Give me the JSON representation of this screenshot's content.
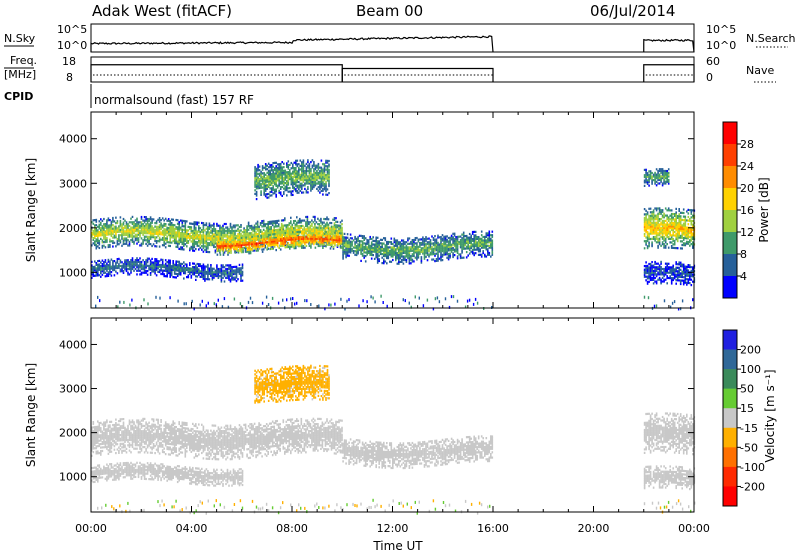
{
  "header": {
    "station": "Adak West (fitACF)",
    "beam": "Beam 00",
    "date": "06/Jul/2014"
  },
  "top_panels": {
    "nsky_label": "N.Sky",
    "nsky_ticks": [
      "10^5",
      "10^0"
    ],
    "nsearch_label": "N.Search",
    "nsearch_ticks": [
      "10^5",
      "10^0"
    ],
    "freq_label": "Freq.",
    "freq_unit": "[MHz]",
    "freq_ticks": [
      "18",
      "8"
    ],
    "nave_label": "Nave",
    "nave_ticks": [
      "60",
      "0"
    ],
    "cpid_label": "CPID",
    "cpid_text": "normalsound (fast) 157 RF",
    "freq_segments": [
      {
        "start": 0,
        "end": 10,
        "freq_level": 0.45
      },
      {
        "start": 10,
        "end": 16,
        "freq_level": 0.3
      },
      {
        "start": 22,
        "end": 24,
        "freq_level": 0.45
      }
    ],
    "nave_level": 0.12,
    "noise_level": 0.3,
    "data_windows": [
      [
        0,
        16
      ],
      [
        22,
        24
      ]
    ]
  },
  "colorbars": {
    "power_label": "Power [dB]",
    "power_ticks": [
      "28",
      "24",
      "20",
      "16",
      "12",
      "8",
      "4"
    ],
    "power_colors": [
      "#ff0000",
      "#ff4000",
      "#ff8c00",
      "#ffd200",
      "#a0d040",
      "#3f9a6a",
      "#26609a",
      "#0000ff"
    ],
    "velocity_label": "Velocity [m s⁻¹]",
    "velocity_ticks": [
      "200",
      "100",
      "50",
      "15",
      "-15",
      "-50",
      "-100",
      "-200"
    ],
    "velocity_colors": [
      "#2020e0",
      "#306898",
      "#3a8a5a",
      "#66cc33",
      "#c8c8c8",
      "#ffb000",
      "#ff7000",
      "#ff2a00",
      "#ff0000"
    ]
  },
  "chart_data": [
    {
      "type": "heatmap",
      "panel": "power",
      "ylabel": "Slant Range [km]",
      "xlabel": "Time UT",
      "xlim": [
        0,
        24
      ],
      "ylim": [
        200,
        4600
      ],
      "y_ticks": [
        1000,
        2000,
        3000,
        4000
      ],
      "x_ticks": [
        "00:00",
        "04:00",
        "08:00",
        "12:00",
        "16:00",
        "20:00",
        "00:00"
      ],
      "data_windows": [
        [
          0,
          16
        ],
        [
          22,
          24
        ]
      ],
      "bands": [
        {
          "t0": 0,
          "t1": 10,
          "r0": 1550,
          "r1": 2200,
          "value": 14
        },
        {
          "t0": 5,
          "t1": 10,
          "r0": 1500,
          "r1": 1900,
          "value": 22
        },
        {
          "t0": 10,
          "t1": 16,
          "r0": 1300,
          "r1": 1900,
          "value": 10
        },
        {
          "t0": 0,
          "t1": 6,
          "r0": 900,
          "r1": 1300,
          "value": 6
        },
        {
          "t0": 6.5,
          "t1": 9.5,
          "r0": 2700,
          "r1": 3500,
          "value": 11
        },
        {
          "t0": 22,
          "t1": 24,
          "r0": 1500,
          "r1": 2400,
          "value": 17
        },
        {
          "t0": 22,
          "t1": 24,
          "r0": 700,
          "r1": 1200,
          "value": 5
        },
        {
          "t0": 22,
          "t1": 23,
          "r0": 2900,
          "r1": 3300,
          "value": 10
        }
      ]
    },
    {
      "type": "heatmap",
      "panel": "velocity",
      "ylabel": "Slant Range [km]",
      "xlabel": "Time UT",
      "xlim": [
        0,
        24
      ],
      "ylim": [
        200,
        4600
      ],
      "y_ticks": [
        1000,
        2000,
        3000,
        4000
      ],
      "x_ticks": [
        "00:00",
        "04:00",
        "08:00",
        "12:00",
        "16:00",
        "20:00",
        "00:00"
      ],
      "data_windows": [
        [
          0,
          16
        ],
        [
          22,
          24
        ]
      ],
      "bands": [
        {
          "t0": 0,
          "t1": 10,
          "r0": 1500,
          "r1": 2300,
          "value": 0
        },
        {
          "t0": 10,
          "t1": 16,
          "r0": 1300,
          "r1": 1900,
          "value": 0
        },
        {
          "t0": 0,
          "t1": 6,
          "r0": 900,
          "r1": 1300,
          "value": 0
        },
        {
          "t0": 6.5,
          "t1": 9.5,
          "r0": 2700,
          "r1": 3500,
          "value": -20
        },
        {
          "t0": 22,
          "t1": 24,
          "r0": 1500,
          "r1": 2400,
          "value": 0
        },
        {
          "t0": 22,
          "t1": 24,
          "r0": 700,
          "r1": 1200,
          "value": 0
        }
      ]
    }
  ]
}
